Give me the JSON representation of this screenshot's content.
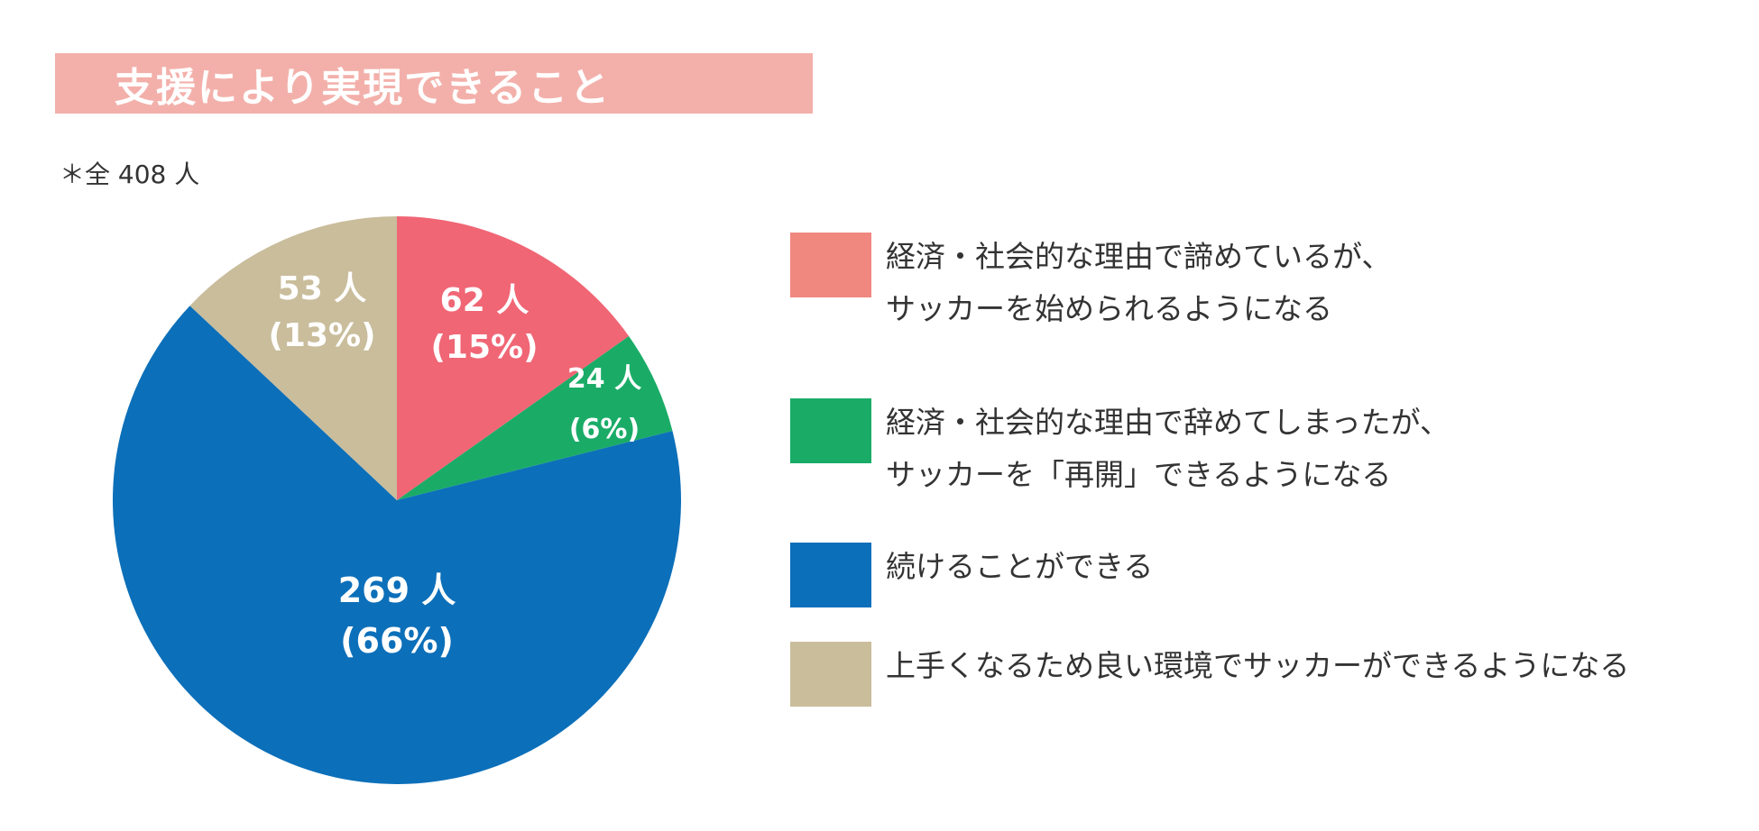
{
  "title": "支援により実現できること",
  "note": "＊全 408 人",
  "colors": {
    "title_bar": "#f3b0aa",
    "title_text": "#ffffff"
  },
  "chart_data": {
    "type": "pie",
    "title": "支援により実現できること",
    "total_note": "＊全 408 人",
    "slices": [
      {
        "count_label": "62 人",
        "pct_label": "(15%)",
        "value": 62,
        "percent": 15,
        "color": "#f06675",
        "legend_color": "#f08880",
        "legend": [
          "経済・社会的な理由で諦めているが、",
          "サッカーを始められるようになる"
        ]
      },
      {
        "count_label": "24 人",
        "pct_label": "(6%)",
        "value": 24,
        "percent": 6,
        "color": "#1aac67",
        "legend_color": "#1aac67",
        "legend": [
          "経済・社会的な理由で辞めてしまったが、",
          "サッカーを「再開」できるようになる"
        ]
      },
      {
        "count_label": "269 人",
        "pct_label": "(66%)",
        "value": 269,
        "percent": 66,
        "color": "#0c6fb9",
        "legend_color": "#0c6fb9",
        "legend": [
          "続けることができる"
        ]
      },
      {
        "count_label": "53 人",
        "pct_label": "(13%)",
        "value": 53,
        "percent": 13,
        "color": "#c9bd9c",
        "legend_color": "#c9bd9c",
        "legend": [
          "上手くなるため良い環境でサッカーができるようになる"
        ]
      }
    ]
  }
}
